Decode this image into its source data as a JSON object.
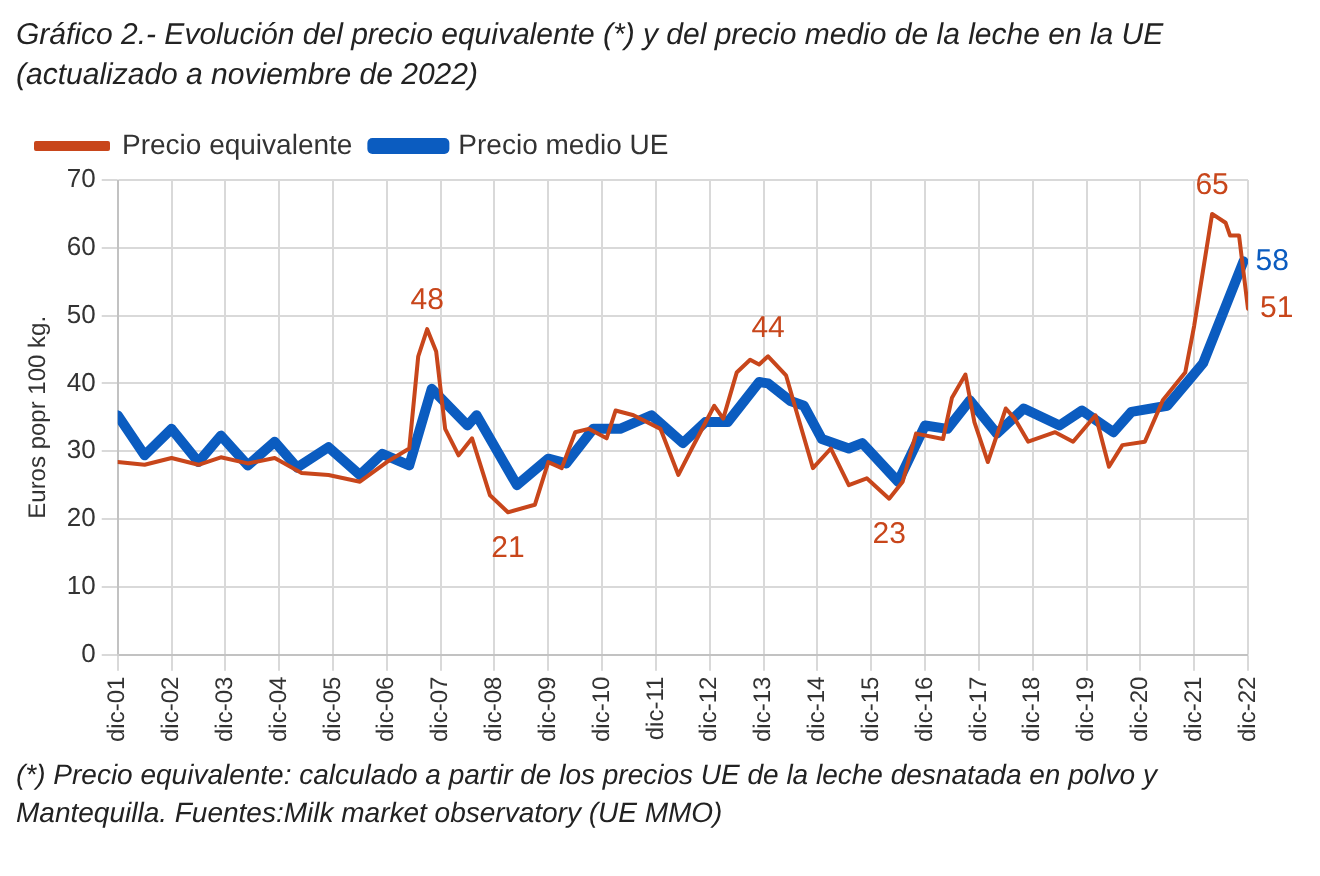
{
  "chart_data": {
    "type": "line",
    "title": "Gráfico 2.- Evolución del precio equivalente (*) y del precio medio de la leche en la UE (actualizado a noviembre de 2022)",
    "ylabel": "Euros popr 100 kg.",
    "annotations": [
      {
        "text": "48",
        "x": "2007-09",
        "y": 48
      },
      {
        "text": "21",
        "x": "2009-03",
        "y": 21
      },
      {
        "text": "44",
        "x": "2014-01",
        "y": 44
      },
      {
        "text": "23",
        "x": "2016-04",
        "y": 23
      },
      {
        "text": "65",
        "x": "2022-04",
        "y": 65
      },
      {
        "text": "51",
        "x": "2022-12",
        "y": 51
      },
      {
        "text": "58",
        "x": "2022-11",
        "y": 58
      },
      "(*) Precio equivalente: calculado a partir de los precios UE de la leche desnatada en polvo y Mantequilla. Fuentes:Milk market observatory (UE MMO)"
    ],
    "series": [
      {
        "name": "Precio equivalente",
        "color": "#c8461b",
        "x": [
          "2001-12",
          "2002-06",
          "2002-12",
          "2003-06",
          "2003-11",
          "2004-05",
          "2004-11",
          "2005-05",
          "2005-11",
          "2006-06",
          "2006-12",
          "2007-05",
          "2007-07",
          "2007-09",
          "2007-11",
          "2008-01",
          "2008-04",
          "2008-07",
          "2008-11",
          "2009-03",
          "2009-09",
          "2009-12",
          "2010-03",
          "2010-06",
          "2010-09",
          "2011-01",
          "2011-03",
          "2011-07",
          "2012-01",
          "2012-05",
          "2012-08",
          "2013-01",
          "2013-03",
          "2013-06",
          "2013-09",
          "2013-11",
          "2014-01",
          "2014-05",
          "2014-08",
          "2014-11",
          "2015-03",
          "2015-07",
          "2015-11",
          "2016-04",
          "2016-07",
          "2016-10",
          "2017-04",
          "2017-06",
          "2017-09",
          "2017-11",
          "2018-02",
          "2018-06",
          "2018-08",
          "2018-11",
          "2019-05",
          "2019-09",
          "2020-02",
          "2020-05",
          "2020-08",
          "2021-01",
          "2021-05",
          "2021-10",
          "2021-12",
          "2022-04",
          "2022-07",
          "2022-08",
          "2022-10",
          "2022-12"
        ],
        "values": [
          28.4,
          28,
          29,
          28,
          29.1,
          28.2,
          29,
          26.8,
          26.5,
          25.5,
          28.4,
          30.4,
          44,
          48,
          44.7,
          33.3,
          29.4,
          31.9,
          23.5,
          21,
          22.1,
          28.4,
          27.5,
          32.8,
          33.3,
          31.9,
          36,
          35.3,
          33.3,
          26.5,
          30.4,
          36.7,
          34.8,
          41.6,
          43.5,
          42.8,
          44,
          41.2,
          34.3,
          27.5,
          30.4,
          25,
          26,
          23,
          25.5,
          32.6,
          31.8,
          37.9,
          41.3,
          34.3,
          28.4,
          36.3,
          34.8,
          31.4,
          32.8,
          31.4,
          35.3,
          27.7,
          30.9,
          31.4,
          37.5,
          41.6,
          48.5,
          65,
          63.7,
          61.8,
          61.8,
          51
        ]
      },
      {
        "name": "Precio medio UE",
        "color": "#0b5cc0",
        "x": [
          "2001-12",
          "2002-06",
          "2002-12",
          "2003-06",
          "2003-11",
          "2004-05",
          "2004-11",
          "2005-04",
          "2005-11",
          "2006-06",
          "2006-11",
          "2007-05",
          "2007-10",
          "2008-06",
          "2008-08",
          "2009-05",
          "2009-12",
          "2010-04",
          "2010-10",
          "2011-04",
          "2011-11",
          "2012-06",
          "2012-11",
          "2013-04",
          "2013-11",
          "2014-01",
          "2014-06",
          "2014-09",
          "2015-01",
          "2015-07",
          "2015-10",
          "2016-06",
          "2016-12",
          "2017-05",
          "2017-10",
          "2018-04",
          "2018-10",
          "2019-06",
          "2019-11",
          "2020-06",
          "2020-10",
          "2021-06",
          "2021-11",
          "2022-02",
          "2022-11"
        ],
        "values": [
          35.3,
          29.4,
          33.3,
          28.4,
          32.3,
          27.9,
          31.4,
          27.6,
          30.6,
          26.5,
          29.6,
          27.9,
          39.2,
          33.8,
          35.3,
          25,
          28.9,
          28.2,
          33.3,
          33.3,
          35.3,
          31.2,
          34.3,
          34.3,
          40.2,
          40,
          37.4,
          36.7,
          31.8,
          30.4,
          31.2,
          25.5,
          33.8,
          33.3,
          37.5,
          32.6,
          36.3,
          33.8,
          36,
          32.8,
          35.8,
          36.7,
          40.6,
          43,
          58
        ]
      }
    ],
    "xlim": [
      "2001-12",
      "2022-12"
    ],
    "xticks": [
      {
        "value": "2001-12",
        "label": "dic-01"
      },
      {
        "value": "2002-12",
        "label": "dic-02"
      },
      {
        "value": "2003-12",
        "label": "dic-03"
      },
      {
        "value": "2004-12",
        "label": "dic-04"
      },
      {
        "value": "2005-12",
        "label": "dic-05"
      },
      {
        "value": "2006-12",
        "label": "dic-06"
      },
      {
        "value": "2007-12",
        "label": "dic-07"
      },
      {
        "value": "2008-12",
        "label": "dic-08"
      },
      {
        "value": "2009-12",
        "label": "dic-09"
      },
      {
        "value": "2010-12",
        "label": "dic-10"
      },
      {
        "value": "2011-12",
        "label": "dic-11"
      },
      {
        "value": "2012-12",
        "label": "dic-12"
      },
      {
        "value": "2013-12",
        "label": "dic-13"
      },
      {
        "value": "2014-12",
        "label": "dic-14"
      },
      {
        "value": "2015-12",
        "label": "dic-15"
      },
      {
        "value": "2016-12",
        "label": "dic-16"
      },
      {
        "value": "2017-12",
        "label": "dic-17"
      },
      {
        "value": "2018-12",
        "label": "dic-18"
      },
      {
        "value": "2019-12",
        "label": "dic-19"
      },
      {
        "value": "2020-12",
        "label": "dic-20"
      },
      {
        "value": "2021-12",
        "label": "dic-21"
      },
      {
        "value": "2022-12",
        "label": "dic-22"
      }
    ],
    "ylim": [
      0,
      70
    ],
    "yticks": [
      0,
      10,
      20,
      30,
      40,
      50,
      60,
      70
    ],
    "grid": true,
    "legend": "top left",
    "marker": "none",
    "line_style": "solid"
  }
}
